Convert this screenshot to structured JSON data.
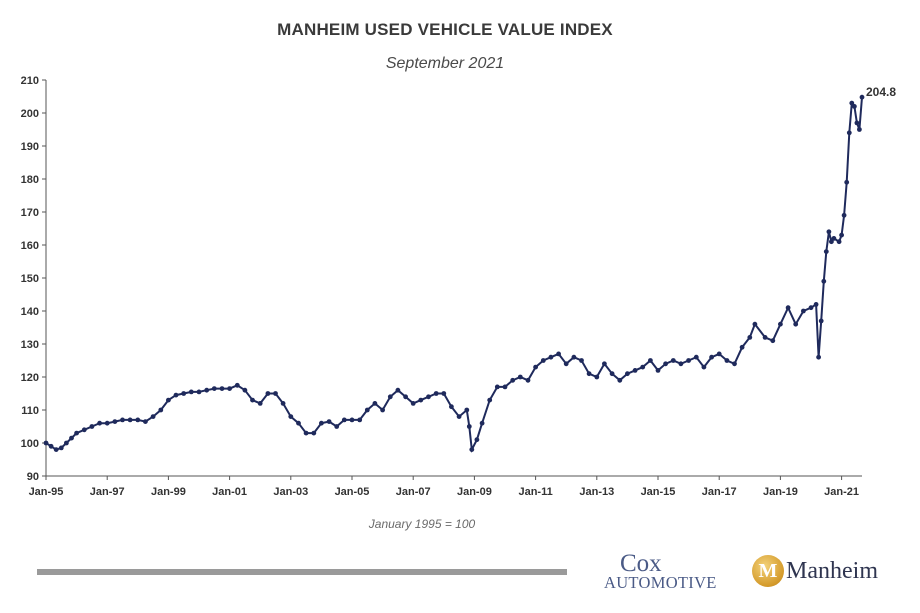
{
  "chart_data": {
    "type": "line",
    "title": "MANHEIM USED VEHICLE VALUE INDEX",
    "subtitle": "September 2021",
    "base_note": "January 1995 = 100",
    "latest_label": "204.8",
    "ylim": [
      90,
      210
    ],
    "yticks": [
      "90",
      "100",
      "110",
      "120",
      "130",
      "140",
      "150",
      "160",
      "170",
      "180",
      "190",
      "200",
      "210"
    ],
    "xticks": [
      "Jan-95",
      "Jan-97",
      "Jan-99",
      "Jan-01",
      "Jan-03",
      "Jan-05",
      "Jan-07",
      "Jan-09",
      "Jan-11",
      "Jan-13",
      "Jan-15",
      "Jan-17",
      "Jan-19",
      "Jan-21"
    ],
    "xrange": [
      "1995-01",
      "2021-09"
    ],
    "grid": false,
    "line_color": "#1f2a5c",
    "series": [
      {
        "points": [
          [
            "1995-01",
            100
          ],
          [
            "1995-03",
            99
          ],
          [
            "1995-05",
            98
          ],
          [
            "1995-07",
            98.5
          ],
          [
            "1995-09",
            100
          ],
          [
            "1995-11",
            101.5
          ],
          [
            "1996-01",
            103
          ],
          [
            "1996-04",
            104
          ],
          [
            "1996-07",
            105
          ],
          [
            "1996-10",
            106
          ],
          [
            "1997-01",
            106
          ],
          [
            "1997-04",
            106.5
          ],
          [
            "1997-07",
            107
          ],
          [
            "1997-10",
            107
          ],
          [
            "1998-01",
            107
          ],
          [
            "1998-04",
            106.5
          ],
          [
            "1998-07",
            108
          ],
          [
            "1998-10",
            110
          ],
          [
            "1999-01",
            113
          ],
          [
            "1999-04",
            114.5
          ],
          [
            "1999-07",
            115
          ],
          [
            "1999-10",
            115.5
          ],
          [
            "2000-01",
            115.5
          ],
          [
            "2000-04",
            116
          ],
          [
            "2000-07",
            116.5
          ],
          [
            "2000-10",
            116.5
          ],
          [
            "2001-01",
            116.5
          ],
          [
            "2001-04",
            117.5
          ],
          [
            "2001-07",
            116
          ],
          [
            "2001-10",
            113
          ],
          [
            "2002-01",
            112
          ],
          [
            "2002-04",
            115
          ],
          [
            "2002-07",
            115
          ],
          [
            "2002-10",
            112
          ],
          [
            "2003-01",
            108
          ],
          [
            "2003-04",
            106
          ],
          [
            "2003-07",
            103
          ],
          [
            "2003-10",
            103
          ],
          [
            "2004-01",
            106
          ],
          [
            "2004-04",
            106.5
          ],
          [
            "2004-07",
            105
          ],
          [
            "2004-10",
            107
          ],
          [
            "2005-01",
            107
          ],
          [
            "2005-04",
            107
          ],
          [
            "2005-07",
            110
          ],
          [
            "2005-10",
            112
          ],
          [
            "2006-01",
            110
          ],
          [
            "2006-04",
            114
          ],
          [
            "2006-07",
            116
          ],
          [
            "2006-10",
            114
          ],
          [
            "2007-01",
            112
          ],
          [
            "2007-04",
            113
          ],
          [
            "2007-07",
            114
          ],
          [
            "2007-10",
            115
          ],
          [
            "2008-01",
            115
          ],
          [
            "2008-04",
            111
          ],
          [
            "2008-07",
            108
          ],
          [
            "2008-10",
            110
          ],
          [
            "2008-11",
            105
          ],
          [
            "2008-12",
            98
          ],
          [
            "2009-02",
            101
          ],
          [
            "2009-04",
            106
          ],
          [
            "2009-07",
            113
          ],
          [
            "2009-10",
            117
          ],
          [
            "2010-01",
            117
          ],
          [
            "2010-04",
            119
          ],
          [
            "2010-07",
            120
          ],
          [
            "2010-10",
            119
          ],
          [
            "2011-01",
            123
          ],
          [
            "2011-04",
            125
          ],
          [
            "2011-07",
            126
          ],
          [
            "2011-10",
            127
          ],
          [
            "2012-01",
            124
          ],
          [
            "2012-04",
            126
          ],
          [
            "2012-07",
            125
          ],
          [
            "2012-10",
            121
          ],
          [
            "2013-01",
            120
          ],
          [
            "2013-04",
            124
          ],
          [
            "2013-07",
            121
          ],
          [
            "2013-10",
            119
          ],
          [
            "2014-01",
            121
          ],
          [
            "2014-04",
            122
          ],
          [
            "2014-07",
            123
          ],
          [
            "2014-10",
            125
          ],
          [
            "2015-01",
            122
          ],
          [
            "2015-04",
            124
          ],
          [
            "2015-07",
            125
          ],
          [
            "2015-10",
            124
          ],
          [
            "2016-01",
            125
          ],
          [
            "2016-04",
            126
          ],
          [
            "2016-07",
            123
          ],
          [
            "2016-10",
            126
          ],
          [
            "2017-01",
            127
          ],
          [
            "2017-04",
            125
          ],
          [
            "2017-07",
            124
          ],
          [
            "2017-10",
            129
          ],
          [
            "2018-01",
            132
          ],
          [
            "2018-03",
            136
          ],
          [
            "2018-07",
            132
          ],
          [
            "2018-10",
            131
          ],
          [
            "2019-01",
            136
          ],
          [
            "2019-04",
            141
          ],
          [
            "2019-07",
            136
          ],
          [
            "2019-10",
            140
          ],
          [
            "2020-01",
            141
          ],
          [
            "2020-03",
            142
          ],
          [
            "2020-04",
            126
          ],
          [
            "2020-05",
            137
          ],
          [
            "2020-06",
            149
          ],
          [
            "2020-07",
            158
          ],
          [
            "2020-08",
            164
          ],
          [
            "2020-09",
            161
          ],
          [
            "2020-10",
            162
          ],
          [
            "2020-12",
            161
          ],
          [
            "2021-01",
            163
          ],
          [
            "2021-02",
            169
          ],
          [
            "2021-03",
            179
          ],
          [
            "2021-04",
            194
          ],
          [
            "2021-05",
            203
          ],
          [
            "2021-06",
            202
          ],
          [
            "2021-07",
            197
          ],
          [
            "2021-08",
            195
          ],
          [
            "2021-09",
            204.8
          ]
        ]
      }
    ]
  },
  "footer": {
    "cox_line1": "Cox",
    "cox_line2": "AUTOMOTIVE",
    "manheim_emblem": "M",
    "manheim_word": "Manheim"
  }
}
